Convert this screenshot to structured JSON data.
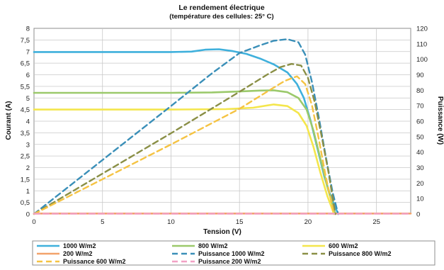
{
  "chart_data": {
    "type": "line",
    "title": "Le rendement électrique",
    "subtitle": "(température des cellules: 25° C)",
    "xlabel": "Tension (V)",
    "ylabel": "Courant (A)",
    "y2label": "Puissance (W)",
    "xlim": [
      0,
      27.5
    ],
    "ylim": [
      0,
      8
    ],
    "y2lim": [
      0,
      120
    ],
    "xticks": [
      "0",
      "5",
      "10",
      "15",
      "20",
      "25"
    ],
    "yticks": [
      "0",
      "0,5",
      "1",
      "1,5",
      "2",
      "2,5",
      "3",
      "3,5",
      "4",
      "4,5",
      "5",
      "5,5",
      "6",
      "6,5",
      "7",
      "7,5",
      "8"
    ],
    "y2ticks": [
      "0",
      "10",
      "20",
      "30",
      "40",
      "50",
      "60",
      "70",
      "80",
      "90",
      "100",
      "110",
      "120"
    ],
    "grid": true,
    "legend_position": "bottom",
    "series": [
      {
        "name": "1000 W/m2",
        "axis": "left",
        "style": "solid",
        "color": "#3fb0dc",
        "points": [
          [
            0,
            6.98
          ],
          [
            5,
            6.98
          ],
          [
            10,
            6.98
          ],
          [
            11.5,
            7.0
          ],
          [
            12.5,
            7.08
          ],
          [
            13.5,
            7.1
          ],
          [
            14.5,
            7.02
          ],
          [
            15.5,
            6.9
          ],
          [
            16.5,
            6.7
          ],
          [
            17.5,
            6.45
          ],
          [
            18.5,
            6.1
          ],
          [
            19.2,
            5.6
          ],
          [
            19.7,
            5.0
          ],
          [
            20.2,
            4.0
          ],
          [
            20.7,
            2.8
          ],
          [
            21.2,
            1.6
          ],
          [
            21.7,
            0.7
          ],
          [
            22.2,
            0
          ]
        ]
      },
      {
        "name": "800 W/m2",
        "axis": "left",
        "style": "solid",
        "color": "#9bc96b",
        "points": [
          [
            0,
            5.22
          ],
          [
            5,
            5.22
          ],
          [
            10,
            5.22
          ],
          [
            13,
            5.24
          ],
          [
            15,
            5.28
          ],
          [
            16.5,
            5.32
          ],
          [
            17.5,
            5.33
          ],
          [
            18.5,
            5.25
          ],
          [
            19.3,
            5.0
          ],
          [
            19.9,
            4.5
          ],
          [
            20.4,
            3.6
          ],
          [
            20.9,
            2.4
          ],
          [
            21.4,
            1.2
          ],
          [
            22.0,
            0
          ]
        ]
      },
      {
        "name": "600 W/m2",
        "axis": "left",
        "style": "solid",
        "color": "#f4e64c",
        "points": [
          [
            0,
            4.5
          ],
          [
            5,
            4.5
          ],
          [
            10,
            4.5
          ],
          [
            14,
            4.52
          ],
          [
            16,
            4.58
          ],
          [
            17.5,
            4.72
          ],
          [
            18.5,
            4.65
          ],
          [
            19.3,
            4.35
          ],
          [
            19.9,
            3.8
          ],
          [
            20.4,
            2.9
          ],
          [
            20.9,
            1.8
          ],
          [
            21.4,
            0.8
          ],
          [
            21.9,
            0
          ]
        ]
      },
      {
        "name": "200 W/m2",
        "axis": "left",
        "style": "solid",
        "color": "#f2a36b",
        "points": [
          [
            0,
            0.02
          ],
          [
            27.5,
            0.02
          ]
        ]
      },
      {
        "name": "Puissance 1000 W/m2",
        "axis": "right",
        "style": "dash",
        "color": "#3a8fb8",
        "points": [
          [
            0,
            0
          ],
          [
            5,
            34.9
          ],
          [
            10,
            69.8
          ],
          [
            13,
            91
          ],
          [
            15,
            104
          ],
          [
            16.5,
            109
          ],
          [
            17.5,
            112
          ],
          [
            18.5,
            113
          ],
          [
            19.3,
            111
          ],
          [
            19.8,
            103
          ],
          [
            20.3,
            85
          ],
          [
            20.8,
            62
          ],
          [
            21.3,
            37
          ],
          [
            21.8,
            14
          ],
          [
            22.2,
            0
          ]
        ]
      },
      {
        "name": "Puissance 800 W/m2",
        "axis": "right",
        "style": "dash",
        "color": "#8a8f46",
        "points": [
          [
            0,
            0
          ],
          [
            5,
            26.1
          ],
          [
            10,
            52.2
          ],
          [
            15,
            79
          ],
          [
            17,
            90
          ],
          [
            18,
            95
          ],
          [
            18.8,
            97
          ],
          [
            19.5,
            96
          ],
          [
            20.0,
            88
          ],
          [
            20.5,
            72
          ],
          [
            21.0,
            50
          ],
          [
            21.5,
            27
          ],
          [
            22.0,
            0
          ]
        ]
      },
      {
        "name": "Puissance 600 W/m2",
        "axis": "right",
        "style": "dash",
        "color": "#f5c343",
        "points": [
          [
            0,
            0
          ],
          [
            5,
            22.5
          ],
          [
            10,
            45
          ],
          [
            15,
            68
          ],
          [
            17,
            79
          ],
          [
            18.3,
            86
          ],
          [
            19.2,
            89
          ],
          [
            19.8,
            84
          ],
          [
            20.3,
            70
          ],
          [
            20.8,
            48
          ],
          [
            21.3,
            24
          ],
          [
            21.9,
            0
          ]
        ]
      },
      {
        "name": "Puissance 200 W/m2",
        "axis": "right",
        "style": "dash",
        "color": "#f2a0c4",
        "points": [
          [
            0,
            0.2
          ],
          [
            27.5,
            0.2
          ]
        ]
      }
    ]
  }
}
